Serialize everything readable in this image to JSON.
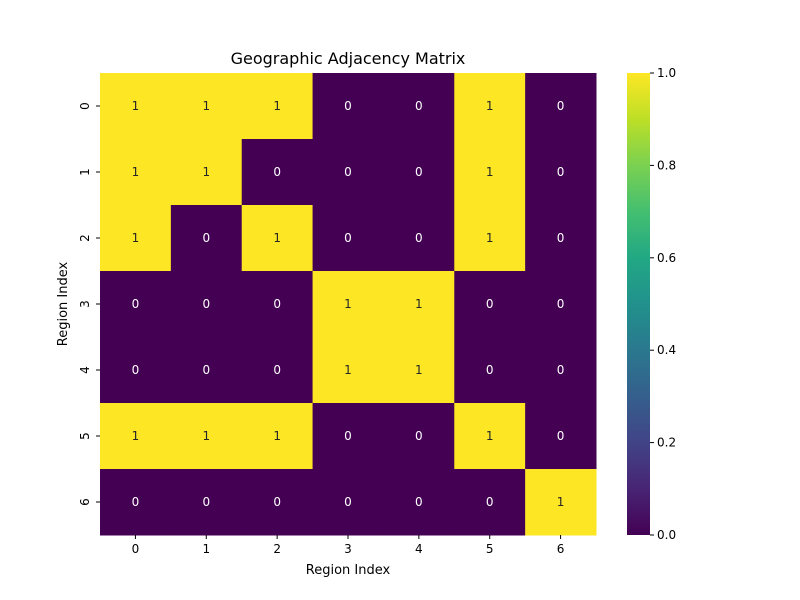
{
  "chart_data": {
    "type": "heatmap",
    "title": "Geographic Adjacency Matrix",
    "xlabel": "Region Index",
    "ylabel": "Region Index",
    "x_categories": [
      "0",
      "1",
      "2",
      "3",
      "4",
      "5",
      "6"
    ],
    "y_categories": [
      "0",
      "1",
      "2",
      "3",
      "4",
      "5",
      "6"
    ],
    "values": [
      [
        1,
        1,
        1,
        0,
        0,
        1,
        0
      ],
      [
        1,
        1,
        0,
        0,
        0,
        1,
        0
      ],
      [
        1,
        0,
        1,
        0,
        0,
        1,
        0
      ],
      [
        0,
        0,
        0,
        1,
        1,
        0,
        0
      ],
      [
        0,
        0,
        0,
        1,
        1,
        0,
        0
      ],
      [
        1,
        1,
        1,
        0,
        0,
        1,
        0
      ],
      [
        0,
        0,
        0,
        0,
        0,
        0,
        1
      ]
    ],
    "colormap": "viridis",
    "value_range": [
      0.0,
      1.0
    ],
    "colorbar_ticks": [
      "0.0",
      "0.2",
      "0.4",
      "0.6",
      "0.8",
      "1.0"
    ],
    "colors": {
      "low": "#440154",
      "high": "#fde725"
    },
    "annotations": true,
    "grid": false
  }
}
